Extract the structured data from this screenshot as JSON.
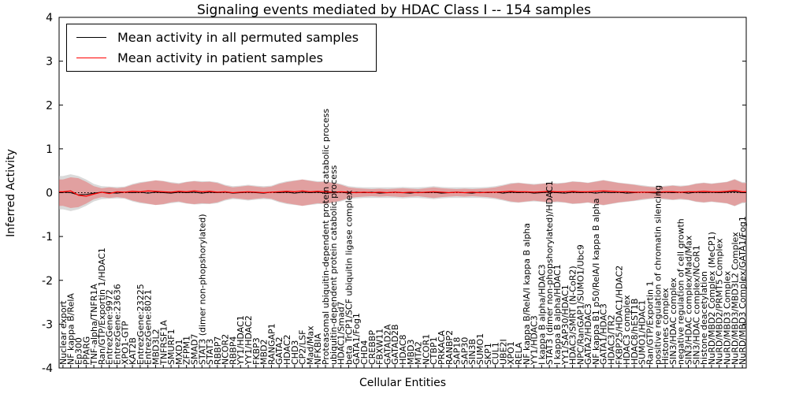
{
  "title": "Signaling events mediated by HDAC Class I -- 154 samples",
  "axes": {
    "ylabel": "Inferred Activity",
    "xlabel": "Cellular Entities",
    "yticks": [
      4,
      3,
      2,
      1,
      0,
      -1,
      -2,
      -3,
      -4
    ]
  },
  "legend": {
    "items": [
      {
        "label": "Mean activity in all permuted samples",
        "color": "#000000"
      },
      {
        "label": "Mean activity in patient samples",
        "color": "#ff0000"
      }
    ]
  },
  "chart_data": {
    "type": "line",
    "title": "Signaling events mediated by HDAC Class I -- 154 samples",
    "xlabel": "Cellular Entities",
    "ylabel": "Inferred Activity",
    "ylim": [
      -4,
      4
    ],
    "grid": false,
    "legend_position": "upper left",
    "zero_reference_line": 0,
    "x_categories": [
      "Nuclear export",
      "NF kappa B/RelA",
      "Ep300",
      "PPARG",
      "TNF-alpha/TNFR1A",
      "Ran/GTP/Exportin 1/HDAC1",
      "EntrezGene:9972",
      "EntrezGene:23636",
      "XPO1-GTP",
      "KAT2B",
      "EntrezGene:23225",
      "EntrezGene:8021",
      "MBD3L2",
      "TNFRSF1A",
      "SMURF1",
      "MXD1",
      "ZFPM1",
      "SMAD7",
      "STAT3 (dimer non-phopshorylated)",
      "STAT3",
      "RBBP7",
      "NCOR2",
      "RBBP4",
      "YY1/HDAC1",
      "YY1/HDAC2",
      "FKBP3",
      "MBD2",
      "RANGAP1",
      "GATA2",
      "HDAC2",
      "CHD3",
      "CP2/LSF",
      "Mad/Max",
      "NFKBIA",
      "Proteasomal ubiquitin-dependent protein catabolic process",
      "ubiquitin-dependent protein catabolic process",
      "HDAC1/Smad7",
      "beta TrCP1/SCF ubiquitin ligase complex",
      "GATA1/Fog1",
      "CHD4",
      "CREBBP",
      "FBXW11",
      "GATAD2A",
      "GATAD2B",
      "HDAC8",
      "MBD3",
      "MTA2",
      "NCOR1",
      "CTBP1",
      "PRKACA",
      "RANBP2",
      "SAP18",
      "SAP30",
      "SIN3B",
      "SUMO1",
      "SKP1",
      "CUL1",
      "UBE2I",
      "XPO1",
      "RELA",
      "NF kappa B/RelA/I kappa B alpha",
      "YY1/HDAC3",
      "I kappa B alpha/HDAC3",
      "STAT3 (dimer non-phopshorylated)/HDAC1",
      "I kappa B alpha/HDAC1",
      "YY1/SAP30/HDAC1",
      "HDAC3/SMRT (N-CoR2)",
      "NPC/RanGAP1/SUMO1/Ubc9",
      "GATA2/HDAC3",
      "NF kappa B1 p50/RelA/I kappa B alpha",
      "GATA1/HDAC3",
      "HDAC3/TR2",
      "FKBP25/HDAC1/HDAC2",
      "HDAC3 complex",
      "HDAC8/hEST1B",
      "SUMO1/HDAC1",
      "Ran/GTP/Exportin 1",
      "positive regulation of chromatin silencing",
      "Histones complex",
      "SIN3/HDAC complex",
      "negative regulation of cell growth",
      "SIN3/HDAC complex/Mad/Max",
      "SIN3/HDAC complex/NCoR1",
      "histone deacetylation",
      "NuRD/MBD2 Complex (MeCP1)",
      "NuRD/MBD2/PRMT5 Complex",
      "NuRD/MBD3 Complex",
      "NuRD/MBD3/MBD3L2 Complex",
      "NuRD/MBD3 Complex/GATA1/Fog1"
    ],
    "series": [
      {
        "name": "Mean activity in all permuted samples",
        "color": "#000000",
        "values": [
          0.01,
          0.0,
          -0.05,
          -0.04,
          -0.01,
          0.01,
          0.0,
          -0.01,
          0.01,
          0.0,
          0.01,
          -0.01,
          0.01,
          0.0,
          -0.01,
          0.01,
          0.0,
          0.01,
          -0.01,
          0.01,
          0.0,
          0.01,
          -0.01,
          0.0,
          0.01,
          0.0,
          -0.01,
          0.01,
          0.0,
          0.01,
          -0.01,
          0.01,
          0.0,
          0.01,
          -0.01,
          0.0,
          0.01,
          -0.01,
          0.01,
          0.0,
          0.01,
          -0.01,
          0.0,
          0.01,
          0.0,
          -0.01,
          0.01,
          0.0,
          0.01,
          -0.01,
          0.0,
          0.01,
          0.0,
          -0.01,
          0.01,
          0.0,
          0.01,
          -0.01,
          0.01,
          0.0,
          0.01,
          -0.01,
          0.0,
          0.01,
          0.0,
          -0.01,
          0.01,
          0.0,
          0.01,
          -0.01,
          0.01,
          0.0,
          0.01,
          -0.01,
          0.0,
          0.01,
          0.0,
          -0.01,
          0.01,
          0.0,
          0.01,
          -0.01,
          0.01,
          0.0,
          0.01,
          0.0,
          0.01,
          0.02,
          0.0
        ]
      },
      {
        "name": "Mean activity in patient samples",
        "color": "#ff0000",
        "values": [
          0.02,
          0.04,
          -0.06,
          -0.08,
          -0.03,
          0.01,
          -0.02,
          0.02,
          0.01,
          0.03,
          0.02,
          0.04,
          0.03,
          0.02,
          0.01,
          0.03,
          0.02,
          0.04,
          0.02,
          0.03,
          0.01,
          0.02,
          0.0,
          0.01,
          0.02,
          0.01,
          0.0,
          0.01,
          0.02,
          0.03,
          0.02,
          0.04,
          0.02,
          0.03,
          0.02,
          0.01,
          0.02,
          0.01,
          0.0,
          0.01,
          0.0,
          0.01,
          0.0,
          0.01,
          0.0,
          0.01,
          0.0,
          0.01,
          0.02,
          0.01,
          0.0,
          0.01,
          0.0,
          0.01,
          0.0,
          0.01,
          0.01,
          0.02,
          0.03,
          0.02,
          0.02,
          0.01,
          0.02,
          0.03,
          0.02,
          0.02,
          0.03,
          0.02,
          0.02,
          0.03,
          0.04,
          0.03,
          0.02,
          0.02,
          0.01,
          0.01,
          0.01,
          0.01,
          0.02,
          0.02,
          0.01,
          0.02,
          0.02,
          0.03,
          0.02,
          0.02,
          0.03,
          0.05,
          0.02
        ]
      }
    ],
    "bands": [
      {
        "name": "permuted samples std band",
        "color": "#bbbbbb",
        "opacity": 0.55,
        "halfwidths": [
          0.38,
          0.42,
          0.38,
          0.3,
          0.2,
          0.15,
          0.14,
          0.13,
          0.14,
          0.2,
          0.24,
          0.26,
          0.28,
          0.27,
          0.24,
          0.22,
          0.25,
          0.27,
          0.26,
          0.26,
          0.24,
          0.18,
          0.15,
          0.16,
          0.18,
          0.16,
          0.15,
          0.16,
          0.22,
          0.26,
          0.28,
          0.3,
          0.28,
          0.26,
          0.26,
          0.24,
          0.2,
          0.15,
          0.13,
          0.12,
          0.12,
          0.12,
          0.12,
          0.12,
          0.13,
          0.12,
          0.12,
          0.13,
          0.15,
          0.13,
          0.12,
          0.12,
          0.12,
          0.12,
          0.12,
          0.13,
          0.15,
          0.18,
          0.22,
          0.23,
          0.21,
          0.2,
          0.21,
          0.23,
          0.22,
          0.23,
          0.26,
          0.25,
          0.23,
          0.26,
          0.29,
          0.26,
          0.23,
          0.21,
          0.19,
          0.17,
          0.15,
          0.14,
          0.16,
          0.17,
          0.16,
          0.17,
          0.21,
          0.23,
          0.21,
          0.23,
          0.25,
          0.31,
          0.24
        ]
      },
      {
        "name": "patient samples std band",
        "color": "#ee3333",
        "opacity": 0.35,
        "halfwidths": [
          0.3,
          0.35,
          0.33,
          0.25,
          0.15,
          0.1,
          0.12,
          0.1,
          0.12,
          0.18,
          0.22,
          0.25,
          0.28,
          0.26,
          0.22,
          0.2,
          0.24,
          0.26,
          0.24,
          0.25,
          0.22,
          0.16,
          0.12,
          0.14,
          0.16,
          0.14,
          0.12,
          0.14,
          0.2,
          0.24,
          0.27,
          0.3,
          0.27,
          0.24,
          0.25,
          0.22,
          0.18,
          0.12,
          0.1,
          0.09,
          0.08,
          0.09,
          0.08,
          0.09,
          0.1,
          0.09,
          0.08,
          0.1,
          0.12,
          0.1,
          0.09,
          0.08,
          0.09,
          0.08,
          0.09,
          0.1,
          0.12,
          0.16,
          0.2,
          0.22,
          0.2,
          0.18,
          0.2,
          0.22,
          0.2,
          0.22,
          0.25,
          0.24,
          0.22,
          0.25,
          0.28,
          0.25,
          0.22,
          0.2,
          0.18,
          0.15,
          0.13,
          0.12,
          0.14,
          0.16,
          0.14,
          0.16,
          0.2,
          0.22,
          0.2,
          0.22,
          0.24,
          0.3,
          0.22
        ]
      }
    ]
  }
}
